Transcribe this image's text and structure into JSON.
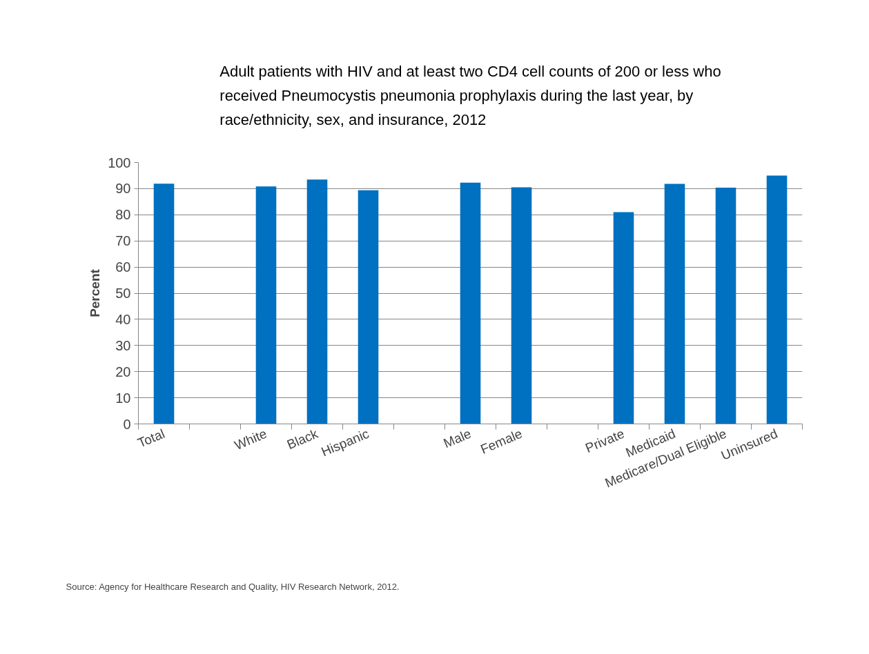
{
  "chart_data": {
    "type": "bar",
    "title": "Adult patients with HIV and at least two CD4 cell counts of 200 or less who received Pneumocystis pneumonia prophylaxis during the last year, by race/ethnicity, sex, and insurance, 2012",
    "ylabel": "Percent",
    "categories": [
      "Total",
      null,
      "White",
      "Black",
      "Hispanic",
      null,
      "Male",
      "Female",
      null,
      "Private",
      "Medicaid",
      "Medicare/Dual Eligible",
      "Uninsured"
    ],
    "values": [
      91.9,
      null,
      90.8,
      93.5,
      89.4,
      null,
      92.3,
      90.5,
      null,
      81.0,
      91.8,
      90.4,
      95.0
    ],
    "color": "#0070c0",
    "ylim": [
      0,
      100
    ],
    "yticks": [
      0,
      10,
      20,
      30,
      40,
      50,
      60,
      70,
      80,
      90,
      100
    ],
    "grid": "y",
    "annotations": [
      "Source: Agency for Healthcare Research and Quality, HIV Research Network, 2012."
    ]
  }
}
